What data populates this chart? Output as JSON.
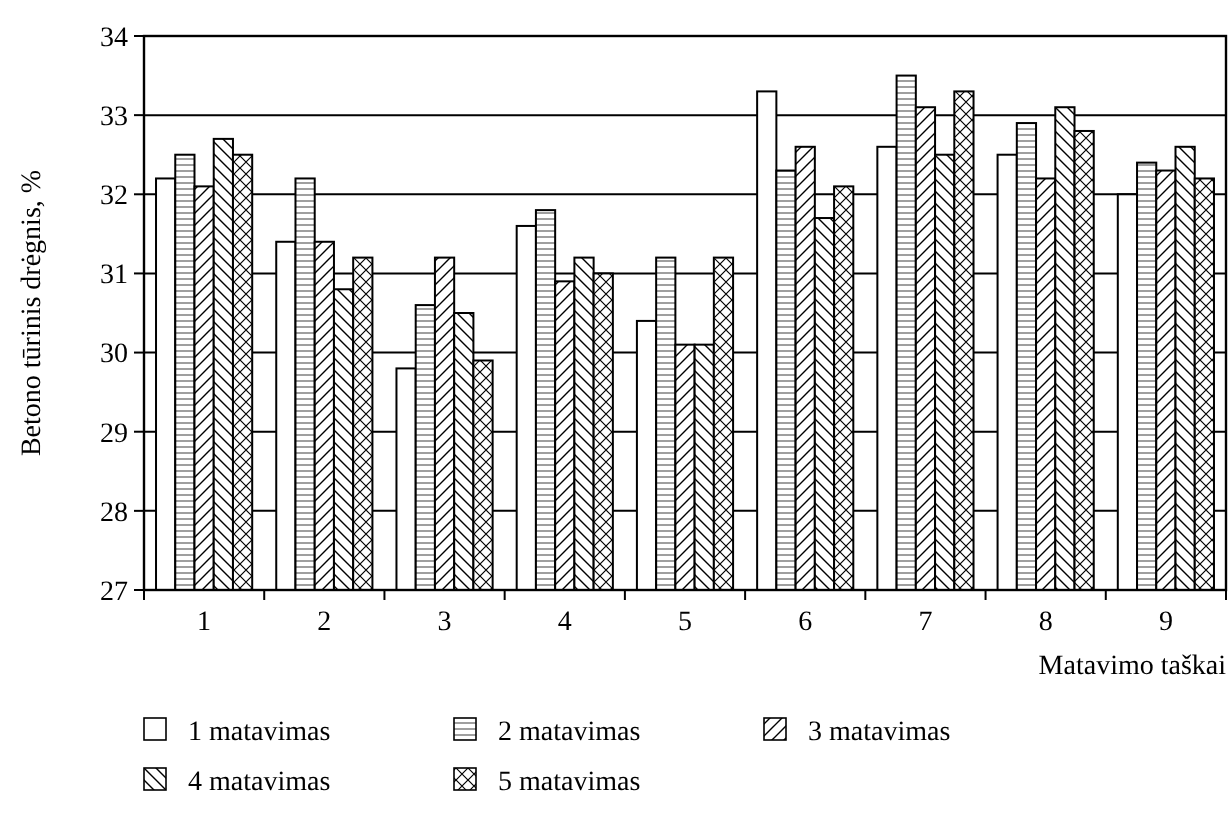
{
  "chart_data": {
    "type": "bar",
    "ylabel": "Betono tūrinis drėgnis, %",
    "xlabel": "Matavimo taškai",
    "categories": [
      "1",
      "2",
      "3",
      "4",
      "5",
      "6",
      "7",
      "8",
      "9"
    ],
    "series": [
      {
        "name": "1 matavimas",
        "color": "#000000",
        "values": [
          32.2,
          31.4,
          29.8,
          31.6,
          30.4,
          33.3,
          32.6,
          32.5,
          32.0
        ]
      },
      {
        "name": "2 matavimas",
        "color": "#000000",
        "values": [
          32.5,
          32.2,
          30.6,
          31.8,
          31.2,
          32.3,
          33.5,
          32.9,
          32.4
        ]
      },
      {
        "name": "3 matavimas",
        "color": "#000000",
        "values": [
          32.1,
          31.4,
          31.2,
          30.9,
          30.1,
          32.6,
          33.1,
          32.2,
          32.3
        ]
      },
      {
        "name": "4 matavimas",
        "color": "#000000",
        "values": [
          32.7,
          30.8,
          30.5,
          31.2,
          30.1,
          31.7,
          32.5,
          33.1,
          32.6
        ]
      },
      {
        "name": "5 matavimas",
        "color": "#000000",
        "values": [
          32.5,
          31.2,
          29.9,
          31.0,
          31.2,
          32.1,
          33.3,
          32.8,
          32.2
        ]
      }
    ],
    "ylim": [
      27,
      34
    ],
    "yticks": [
      27,
      28,
      29,
      30,
      31,
      32,
      33,
      34
    ],
    "grid": "y",
    "legend": "bottom"
  }
}
